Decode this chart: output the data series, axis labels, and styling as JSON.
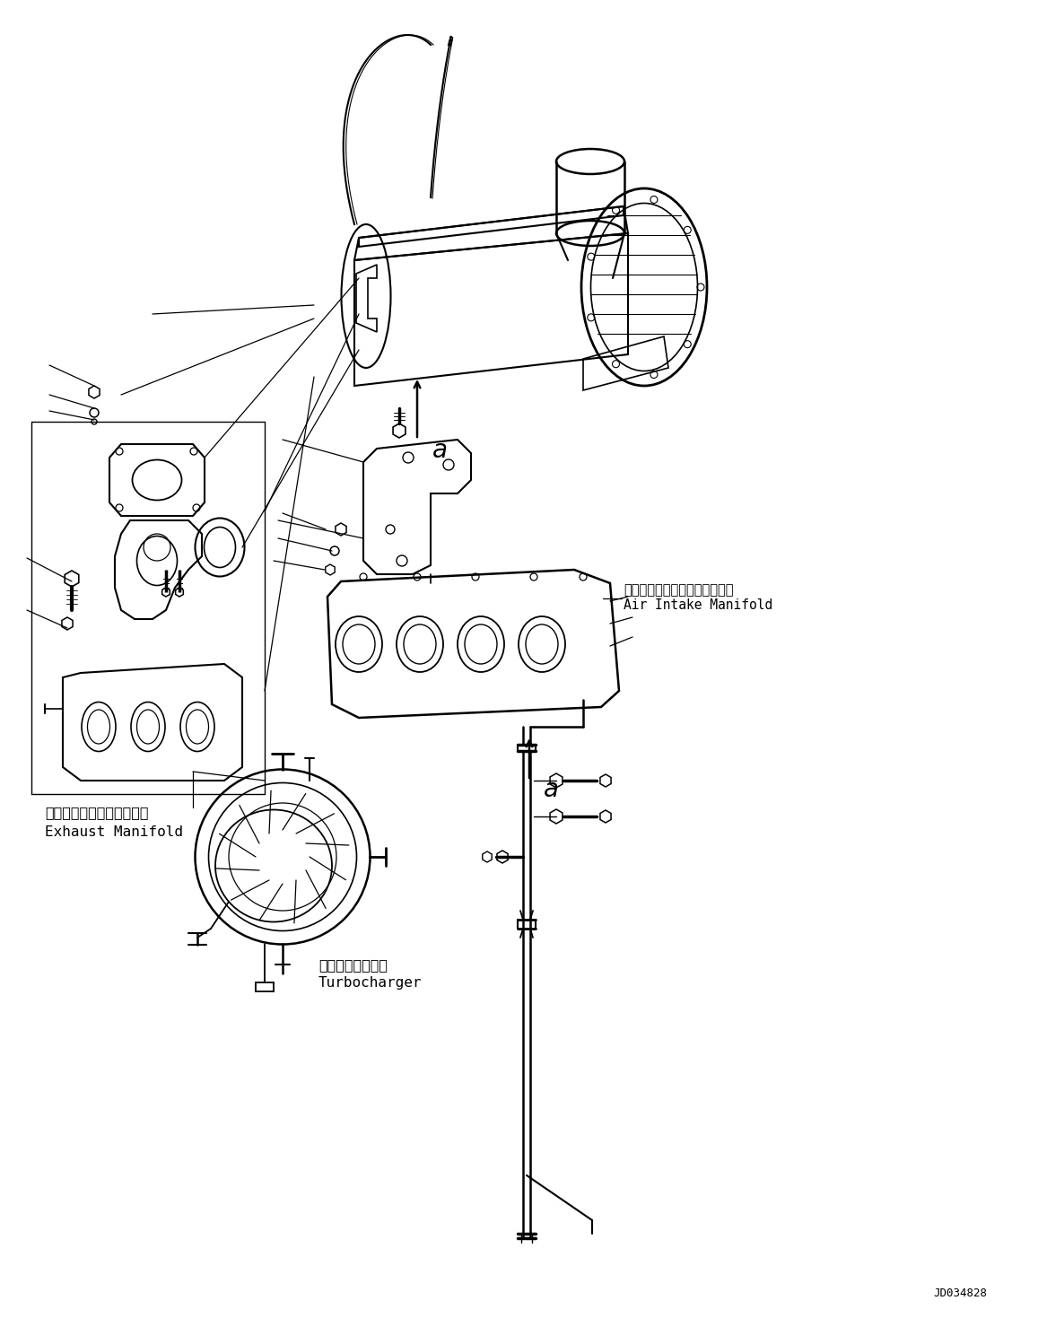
{
  "background_color": "#ffffff",
  "line_color": "#000000",
  "fig_width": 11.57,
  "fig_height": 14.69,
  "dpi": 100,
  "watermark": "JD034828",
  "label_exhaust_jp": "エキゾーストマニホールド",
  "label_exhaust_en": "Exhaust Manifold",
  "label_intake_jp": "エアーインテークマニホールド",
  "label_intake_en": "Air Intake Manifold",
  "label_turbo_jp": "ターボチャージャ",
  "label_turbo_en": "Turbocharger",
  "label_a": "a"
}
